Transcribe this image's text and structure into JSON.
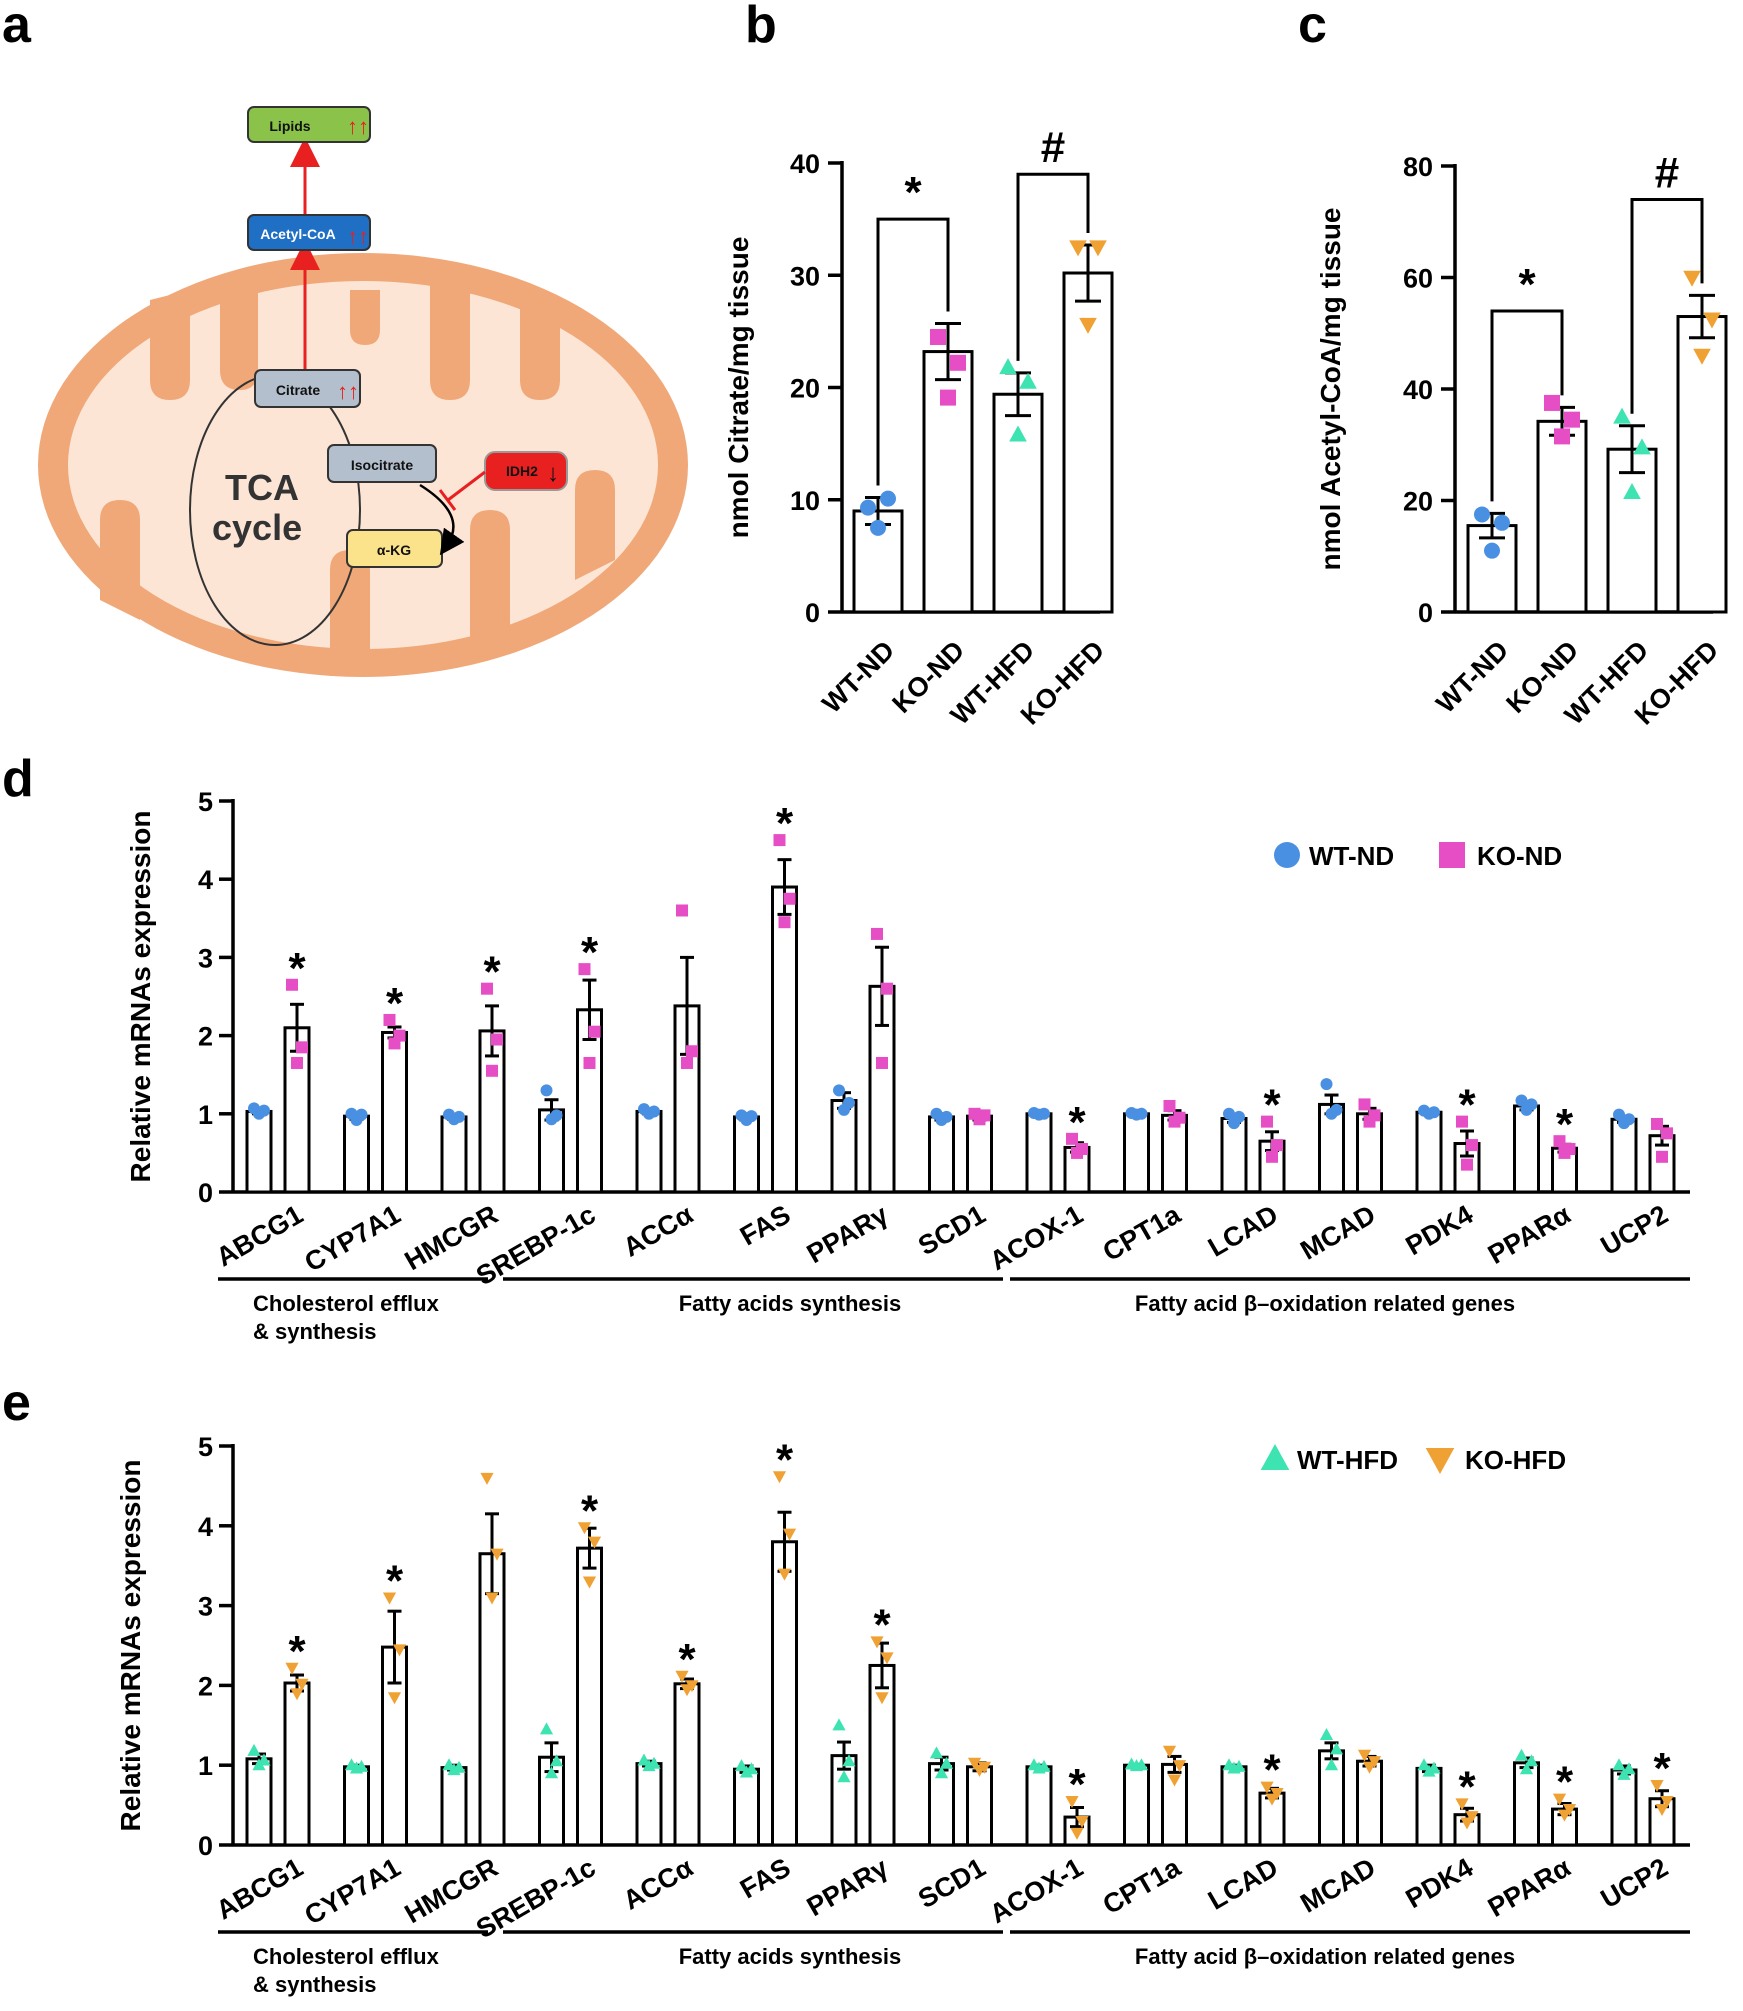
{
  "panel_labels": [
    "a",
    "b",
    "c",
    "d",
    "e"
  ],
  "diagram": {
    "lipids": "Lipids",
    "acetyl_coa": "Acetyl-CoA",
    "citrate": "Citrate",
    "isocitrate": "Isocitrate",
    "akg": "α-KG",
    "idh2": "IDH2",
    "tca_line1": "TCA",
    "tca_line2": "cycle",
    "up_marker": "↑↑",
    "down_marker": "↓"
  },
  "colors": {
    "wt_nd": "#4a90e2",
    "ko_nd": "#e64ec6",
    "wt_hfd": "#3de3b0",
    "ko_hfd": "#f0a133",
    "mito_outer": "#f0a878",
    "mito_inner": "#fde5d6"
  },
  "chart_data": [
    {
      "id": "b",
      "type": "bar",
      "ylabel": "nmol Citrate/mg tissue",
      "ylim": [
        0,
        40
      ],
      "yticks": [
        0,
        10,
        20,
        30,
        40
      ],
      "categories": [
        "WT-ND",
        "KO-ND",
        "WT-HFD",
        "KO-HFD"
      ],
      "values": [
        9,
        23.2,
        19.4,
        30.2
      ],
      "sem": [
        1.2,
        2.5,
        1.9,
        2.5
      ],
      "points": [
        [
          9.3,
          10.1,
          7.5
        ],
        [
          24.5,
          22.2,
          19.1
        ],
        [
          21.8,
          20.5,
          15.8
        ],
        [
          32.5,
          32.5,
          25.6
        ]
      ],
      "markers": [
        "circle",
        "square",
        "triangle",
        "triangle-down"
      ],
      "comparisons": [
        {
          "from": 0,
          "to": 1,
          "label": "*",
          "level": 35
        },
        {
          "from": 2,
          "to": 3,
          "label": "#",
          "level": 39
        }
      ]
    },
    {
      "id": "c",
      "type": "bar",
      "ylabel": "nmol Acetyl-CoA/mg tissue",
      "ylim": [
        0,
        80
      ],
      "yticks": [
        0,
        20,
        40,
        60,
        80
      ],
      "categories": [
        "WT-ND",
        "KO-ND",
        "WT-HFD",
        "KO-HFD"
      ],
      "values": [
        15.5,
        34.2,
        29.2,
        53
      ],
      "sem": [
        2.2,
        2.5,
        4.2,
        3.8
      ],
      "points": [
        [
          17.5,
          16,
          11
        ],
        [
          37.5,
          34.5,
          31.5
        ],
        [
          35,
          29.5,
          21.5
        ],
        [
          60,
          52.5,
          46
        ]
      ],
      "markers": [
        "circle",
        "square",
        "triangle",
        "triangle-down"
      ],
      "comparisons": [
        {
          "from": 0,
          "to": 1,
          "label": "*",
          "level": 54
        },
        {
          "from": 2,
          "to": 3,
          "label": "#",
          "level": 74
        }
      ]
    },
    {
      "id": "d",
      "type": "bar",
      "ylabel": "Relative mRNAs expression",
      "ylim": [
        0,
        5
      ],
      "yticks": [
        0,
        1,
        2,
        3,
        4,
        5
      ],
      "categories": [
        "ABCG1",
        "CYP7A1",
        "HMCGR",
        "SREBP-1c",
        "ACCα",
        "FAS",
        "PPARγ",
        "SCD1",
        "ACOX-1",
        "CPT1a",
        "LCAD",
        "MCAD",
        "PDK4",
        "PPARα",
        "UCP2"
      ],
      "series": [
        {
          "name": "WT-ND",
          "marker": "circle",
          "values": [
            1.03,
            0.97,
            0.96,
            1.05,
            1.03,
            0.96,
            1.17,
            0.96,
            1.0,
            1.0,
            0.94,
            1.12,
            1.02,
            1.1,
            0.93
          ],
          "sem": [
            0.03,
            0.04,
            0.03,
            0.13,
            0.03,
            0.04,
            0.1,
            0.04,
            0.01,
            0.01,
            0.05,
            0.12,
            0.02,
            0.05,
            0.04
          ],
          "points": [
            [
              1.07,
              1.04,
              1.0
            ],
            [
              1.0,
              0.99,
              0.92
            ],
            [
              0.99,
              0.96,
              0.93
            ],
            [
              1.3,
              0.98,
              0.93
            ],
            [
              1.06,
              1.03,
              1.0
            ],
            [
              0.98,
              0.97,
              0.92
            ],
            [
              1.3,
              1.14,
              1.05
            ],
            [
              1.0,
              0.96,
              0.92
            ],
            [
              1.01,
              1.0,
              0.99
            ],
            [
              1.01,
              1.0,
              0.99
            ],
            [
              1.0,
              0.96,
              0.88
            ],
            [
              1.38,
              1.05,
              1.0
            ],
            [
              1.04,
              1.02,
              1.0
            ],
            [
              1.17,
              1.12,
              1.05
            ],
            [
              0.99,
              0.93,
              0.88
            ]
          ]
        },
        {
          "name": "KO-ND",
          "marker": "square",
          "values": [
            2.1,
            2.04,
            2.06,
            2.33,
            2.38,
            3.9,
            2.63,
            0.97,
            0.57,
            0.98,
            0.65,
            1.0,
            0.62,
            0.56,
            0.72
          ],
          "sem": [
            0.3,
            0.07,
            0.32,
            0.38,
            0.62,
            0.35,
            0.5,
            0.05,
            0.06,
            0.06,
            0.12,
            0.07,
            0.16,
            0.05,
            0.12
          ],
          "points": [
            [
              2.65,
              1.85,
              1.65
            ],
            [
              2.2,
              2.0,
              1.9
            ],
            [
              2.6,
              1.95,
              1.55
            ],
            [
              2.85,
              2.05,
              1.65
            ],
            [
              3.6,
              1.8,
              1.65
            ],
            [
              4.5,
              3.75,
              3.45
            ],
            [
              3.3,
              2.6,
              1.65
            ],
            [
              1.0,
              0.98,
              0.93
            ],
            [
              0.68,
              0.55,
              0.5
            ],
            [
              1.1,
              0.95,
              0.9
            ],
            [
              0.9,
              0.6,
              0.45
            ],
            [
              1.12,
              0.98,
              0.9
            ],
            [
              0.9,
              0.6,
              0.35
            ],
            [
              0.65,
              0.55,
              0.5
            ],
            [
              0.87,
              0.75,
              0.45
            ]
          ]
        }
      ],
      "significance": [
        "*",
        "*",
        "*",
        "*",
        "",
        "*",
        "",
        "",
        "*",
        "",
        "*",
        "",
        "*",
        "*",
        ""
      ],
      "groups": [
        "Cholesterol efflux & synthesis",
        "Fatty acids synthesis",
        "Fatty acid β–oxidation related genes"
      ],
      "legend": "top-right"
    },
    {
      "id": "e",
      "type": "bar",
      "ylabel": "Relative mRNAs expression",
      "ylim": [
        0,
        5
      ],
      "yticks": [
        0,
        1,
        2,
        3,
        4,
        5
      ],
      "categories": [
        "ABCG1",
        "CYP7A1",
        "HMCGR",
        "SREBP-1c",
        "ACCα",
        "FAS",
        "PPARγ",
        "SCD1",
        "ACOX-1",
        "CPT1a",
        "LCAD",
        "MCAD",
        "PDK4",
        "PPARα",
        "UCP2"
      ],
      "series": [
        {
          "name": "WT-HFD",
          "marker": "triangle",
          "values": [
            1.08,
            0.98,
            0.97,
            1.1,
            1.02,
            0.95,
            1.12,
            1.02,
            0.98,
            1.0,
            0.98,
            1.18,
            0.96,
            1.03,
            0.94
          ],
          "sem": [
            0.06,
            0.02,
            0.03,
            0.18,
            0.03,
            0.04,
            0.17,
            0.08,
            0.02,
            0.01,
            0.02,
            0.1,
            0.04,
            0.06,
            0.05
          ],
          "points": [
            [
              1.18,
              1.06,
              1.0
            ],
            [
              1.0,
              0.98,
              0.96
            ],
            [
              1.0,
              0.97,
              0.94
            ],
            [
              1.45,
              1.05,
              0.9
            ],
            [
              1.06,
              1.02,
              0.99
            ],
            [
              0.99,
              0.95,
              0.91
            ],
            [
              1.5,
              1.05,
              0.85
            ],
            [
              1.15,
              1.02,
              0.9
            ],
            [
              1.0,
              0.98,
              0.96
            ],
            [
              1.01,
              1.0,
              0.99
            ],
            [
              1.0,
              0.98,
              0.96
            ],
            [
              1.38,
              1.2,
              1.0
            ],
            [
              1.0,
              0.96,
              0.92
            ],
            [
              1.12,
              1.05,
              0.95
            ],
            [
              1.0,
              0.95,
              0.88
            ]
          ]
        },
        {
          "name": "KO-HFD",
          "marker": "triangle-down",
          "values": [
            2.03,
            2.48,
            3.65,
            3.72,
            2.02,
            3.8,
            2.25,
            0.98,
            0.35,
            1.01,
            0.65,
            1.05,
            0.38,
            0.45,
            0.58
          ],
          "sem": [
            0.1,
            0.45,
            0.5,
            0.25,
            0.06,
            0.37,
            0.28,
            0.05,
            0.12,
            0.1,
            0.06,
            0.06,
            0.08,
            0.07,
            0.1
          ],
          "points": [
            [
              2.22,
              2.02,
              1.9
            ],
            [
              3.1,
              2.45,
              1.85
            ],
            [
              4.6,
              3.65,
              3.1
            ],
            [
              3.98,
              3.8,
              3.3
            ],
            [
              2.12,
              2.0,
              1.95
            ],
            [
              4.62,
              3.9,
              3.4
            ],
            [
              2.55,
              2.35,
              1.85
            ],
            [
              1.03,
              0.98,
              0.94
            ],
            [
              0.55,
              0.3,
              0.15
            ],
            [
              1.18,
              1.0,
              0.82
            ],
            [
              0.73,
              0.65,
              0.58
            ],
            [
              1.13,
              1.05,
              0.98
            ],
            [
              0.52,
              0.36,
              0.28
            ],
            [
              0.58,
              0.45,
              0.38
            ],
            [
              0.75,
              0.55,
              0.45
            ]
          ]
        }
      ],
      "significance": [
        "*",
        "*",
        "",
        "*",
        "*",
        "*",
        "*",
        "",
        "*",
        "",
        "*",
        "",
        "*",
        "*",
        "*"
      ],
      "groups": [
        "Cholesterol efflux & synthesis",
        "Fatty acids synthesis",
        "Fatty acid β–oxidation related genes"
      ],
      "legend": "top-right"
    }
  ]
}
